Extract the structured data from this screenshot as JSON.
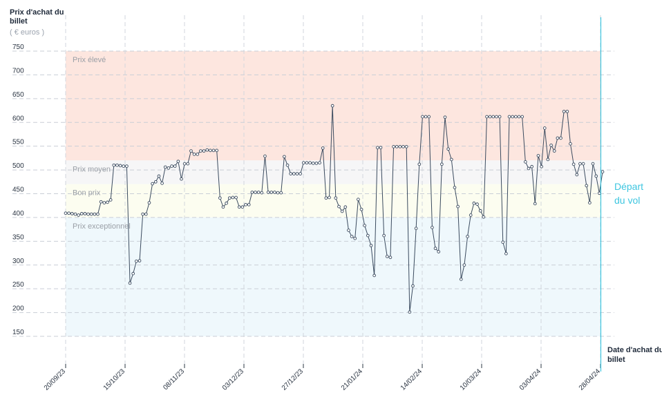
{
  "chart_data": {
    "type": "line",
    "ylabel": "Prix d'achat du billet",
    "yunit": "( € euros )",
    "xlabel": "Date d'achat du billet",
    "ylim": [
      85,
      755
    ],
    "yticks": [
      150,
      200,
      250,
      300,
      350,
      400,
      450,
      500,
      550,
      600,
      650,
      700,
      750
    ],
    "x_start": "2023-09-20",
    "x_end": "2024-04-28",
    "xticks": [
      "20/09/23",
      "15/10/23",
      "08/11/23",
      "03/12/23",
      "27/12/23",
      "21/01/24",
      "14/02/24",
      "10/03/24",
      "03/04/24",
      "28/04/24"
    ],
    "grid": true,
    "bands": [
      {
        "label": "Prix élevé",
        "from": 520,
        "to": 750,
        "color": "#fde6df"
      },
      {
        "label": "Prix moyen",
        "from": 470,
        "to": 520,
        "color": "#f6f6f7"
      },
      {
        "label": "Bon prix",
        "from": 400,
        "to": 470,
        "color": "#fcfdf0"
      },
      {
        "label": "Prix exceptionnel",
        "from": 150,
        "to": 400,
        "color": "#eff8fc"
      }
    ],
    "departure": {
      "label_line1": "Départ",
      "label_line2": "du vol",
      "date": "2024-04-28",
      "color": "#3ec6e0"
    },
    "series": [
      {
        "color": "#3a4a5e",
        "values": [
          409,
          409,
          408,
          407,
          405,
          408,
          408,
          407,
          407,
          407,
          407,
          433,
          431,
          432,
          437,
          510,
          510,
          509,
          508,
          508,
          262,
          282,
          308,
          309,
          407,
          407,
          431,
          471,
          475,
          487,
          472,
          506,
          504,
          508,
          508,
          518,
          481,
          513,
          513,
          540,
          533,
          533,
          540,
          540,
          542,
          541,
          541,
          541,
          441,
          422,
          430,
          441,
          442,
          442,
          422,
          422,
          427,
          427,
          453,
          453,
          453,
          452,
          529,
          453,
          453,
          453,
          452,
          452,
          528,
          510,
          492,
          492,
          492,
          492,
          515,
          515,
          515,
          514,
          514,
          515,
          546,
          441,
          442,
          635,
          441,
          423,
          413,
          422,
          373,
          360,
          356,
          438,
          417,
          383,
          362,
          341,
          278,
          547,
          547,
          362,
          318,
          316,
          549,
          549,
          549,
          549,
          549,
          201,
          256,
          377,
          512,
          612,
          612,
          612,
          379,
          335,
          328,
          512,
          611,
          544,
          522,
          463,
          423,
          270,
          300,
          360,
          405,
          430,
          428,
          414,
          401,
          612,
          612,
          612,
          612,
          612,
          348,
          324,
          612,
          612,
          612,
          612,
          612,
          517,
          503,
          507,
          429,
          530,
          507,
          588,
          522,
          552,
          540,
          567,
          567,
          623,
          623,
          555,
          512,
          490,
          513,
          513,
          467,
          431,
          513,
          487,
          451,
          496
        ]
      }
    ]
  }
}
